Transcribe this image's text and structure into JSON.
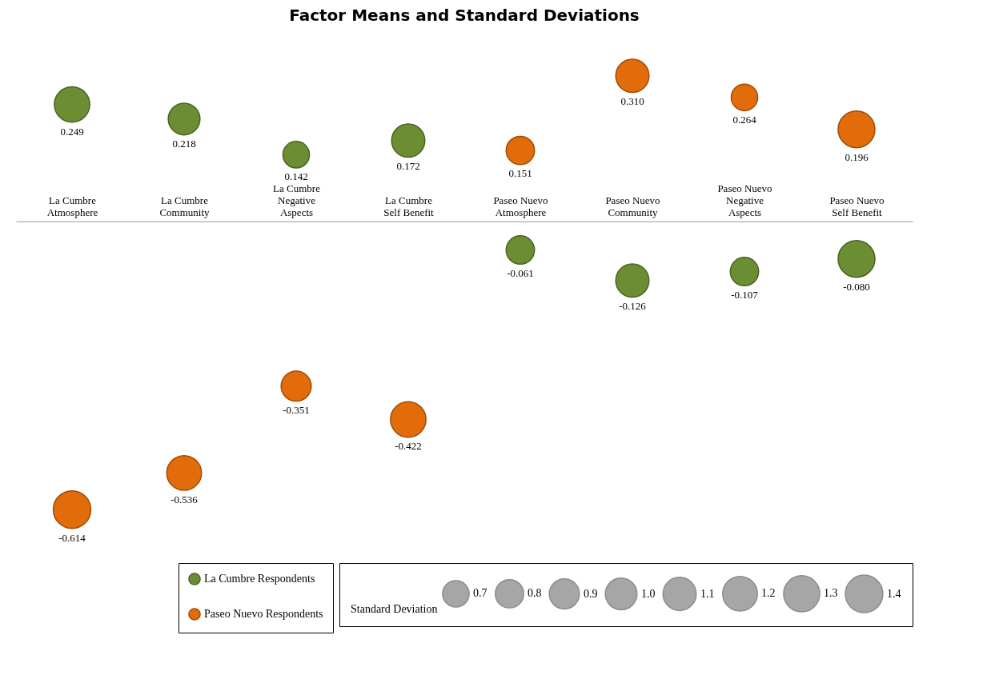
{
  "chart_data": {
    "type": "bubble",
    "title": "Factor Means and Standard Deviations",
    "categories": [
      "La Cumbre Atmosphere",
      "La Cumbre Community",
      "La Cumbre Negative Aspects",
      "La Cumbre Self Benefit",
      "Paseo Nuevo Atmosphere",
      "Paseo Nuevo Community",
      "Paseo Nuevo Negative Aspects",
      "Paseo Nuevo Self Benefit"
    ],
    "series": [
      {
        "name": "La Cumbre Respondents",
        "color": "#6b8e32",
        "values": [
          0.249,
          0.218,
          0.142,
          0.172,
          -0.061,
          -0.126,
          -0.107,
          -0.08
        ],
        "sizes": [
          1.25,
          1.0,
          0.7,
          1.1,
          0.8,
          1.1,
          0.8,
          1.35
        ],
        "value_labels": [
          "0.249",
          "0.218",
          "0.142",
          "0.172",
          "-0.061",
          "-0.126",
          "-0.107",
          "-0.080"
        ]
      },
      {
        "name": "Paseo Nuevo Respondents",
        "color": "#e36c0a",
        "values": [
          -0.614,
          -0.536,
          -0.351,
          -0.422,
          0.151,
          0.31,
          0.264,
          0.196
        ],
        "sizes": [
          1.4,
          1.2,
          0.9,
          1.25,
          0.8,
          1.1,
          0.7,
          1.35
        ],
        "value_labels": [
          "-0.614",
          "-0.536",
          "-0.351",
          "-0.422",
          "0.151",
          "0.310",
          "0.264",
          "0.196"
        ]
      }
    ],
    "legend_title": "Standard Deviation",
    "size_legend": [
      0.7,
      0.8,
      0.9,
      {
        "value": 1,
        "label": "1.0"
      },
      1.1,
      1.2,
      1.3,
      1.4
    ],
    "legend": "bottom",
    "grid": false
  }
}
